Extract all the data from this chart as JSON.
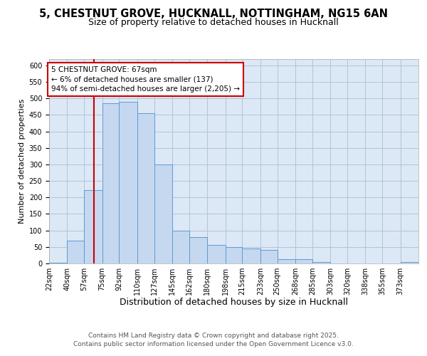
{
  "title1": "5, CHESTNUT GROVE, HUCKNALL, NOTTINGHAM, NG15 6AN",
  "title2": "Size of property relative to detached houses in Hucknall",
  "xlabel": "Distribution of detached houses by size in Hucknall",
  "ylabel": "Number of detached properties",
  "bin_labels": [
    "22sqm",
    "40sqm",
    "57sqm",
    "75sqm",
    "92sqm",
    "110sqm",
    "127sqm",
    "145sqm",
    "162sqm",
    "180sqm",
    "198sqm",
    "215sqm",
    "233sqm",
    "250sqm",
    "268sqm",
    "285sqm",
    "303sqm",
    "320sqm",
    "338sqm",
    "355sqm",
    "373sqm"
  ],
  "bin_edges": [
    22,
    40,
    57,
    75,
    92,
    110,
    127,
    145,
    162,
    180,
    198,
    215,
    233,
    250,
    268,
    285,
    303,
    320,
    338,
    355,
    373,
    391
  ],
  "bar_heights": [
    3,
    70,
    222,
    485,
    490,
    455,
    300,
    100,
    80,
    55,
    50,
    45,
    40,
    13,
    12,
    5,
    1,
    1,
    1,
    1,
    5
  ],
  "bar_color": "#c5d8f0",
  "bar_edge_color": "#5b9bd5",
  "grid_color": "#b0c4d8",
  "bg_color": "#dce8f5",
  "red_line_x": 67,
  "annotation_text": "5 CHESTNUT GROVE: 67sqm\n← 6% of detached houses are smaller (137)\n94% of semi-detached houses are larger (2,205) →",
  "annotation_box_color": "#ffffff",
  "annotation_border_color": "#cc0000",
  "ylim": [
    0,
    620
  ],
  "yticks": [
    0,
    50,
    100,
    150,
    200,
    250,
    300,
    350,
    400,
    450,
    500,
    550,
    600
  ],
  "footer": "Contains HM Land Registry data © Crown copyright and database right 2025.\nContains public sector information licensed under the Open Government Licence v3.0.",
  "title1_fontsize": 10.5,
  "title2_fontsize": 9,
  "xlabel_fontsize": 9,
  "ylabel_fontsize": 8,
  "tick_fontsize": 7,
  "annotation_fontsize": 7.5,
  "footer_fontsize": 6.5
}
